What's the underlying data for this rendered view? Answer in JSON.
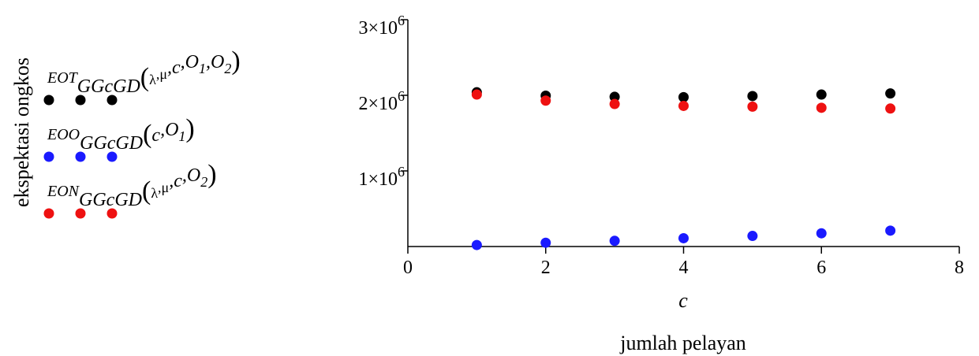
{
  "chart_data": {
    "type": "scatter",
    "ylabel": "ekspektasi ongkos",
    "xlabel_symbol": "c",
    "xlabel": "jumlah pelayan",
    "xlim": [
      0,
      8
    ],
    "ylim": [
      0,
      3000000
    ],
    "grid": false,
    "legend_position": "left",
    "x_ticks": [
      "0",
      "2",
      "4",
      "6",
      "8"
    ],
    "y_ticks": [
      {
        "value": 1000000,
        "base": "1×10",
        "exp": "6"
      },
      {
        "value": 2000000,
        "base": "2×10",
        "exp": "6"
      },
      {
        "value": 3000000,
        "base": "3×10",
        "exp": "6"
      }
    ],
    "series": [
      {
        "legend": {
          "main": "EOT",
          "sub": "GGcGD",
          "args": [
            "λ",
            ",μ",
            ",c",
            ",O",
            "1",
            ",O",
            "2"
          ]
        },
        "color": "#000000",
        "x": [
          1,
          2,
          3,
          4,
          5,
          6,
          7
        ],
        "y": [
          2040000,
          1995000,
          1980000,
          1975000,
          1990000,
          2010000,
          2025000
        ]
      },
      {
        "legend": {
          "main": "EOO",
          "sub": "GGcGD",
          "args": [
            "c",
            ",O",
            "1"
          ]
        },
        "color": "#1a1aff",
        "x": [
          1,
          2,
          3,
          4,
          5,
          6,
          7
        ],
        "y": [
          20000,
          50000,
          75000,
          110000,
          140000,
          175000,
          210000
        ]
      },
      {
        "legend": {
          "main": "EON",
          "sub": "GGcGD",
          "args": [
            "λ",
            ",μ",
            ",c",
            ",O",
            "2"
          ]
        },
        "color": "#ee1111",
        "x": [
          1,
          2,
          3,
          4,
          5,
          6,
          7
        ],
        "y": [
          2010000,
          1930000,
          1885000,
          1860000,
          1850000,
          1835000,
          1825000
        ]
      }
    ]
  }
}
